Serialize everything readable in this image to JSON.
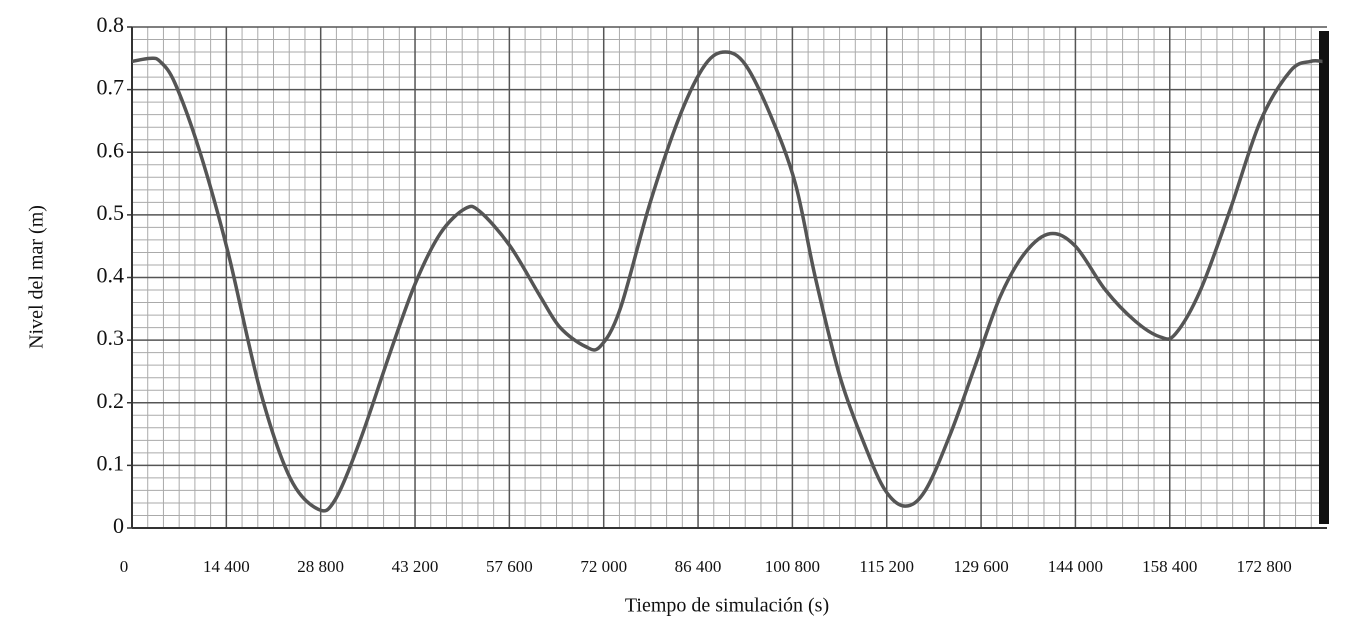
{
  "chart_data": {
    "type": "line",
    "x_label": "Tiempo de simulación (s)",
    "y_label": "Nivel del mar (m)",
    "xlim": [
      0,
      182400
    ],
    "ylim": [
      0,
      0.8
    ],
    "xticks": [
      0,
      {
        "value": 14400,
        "label": "14 400"
      },
      {
        "value": 28800,
        "label": "28 800"
      },
      {
        "value": 43200,
        "label": "43 200"
      },
      {
        "value": 57600,
        "label": "57 600"
      },
      {
        "value": 72000,
        "label": "72 000"
      },
      {
        "value": 86400,
        "label": "86 400"
      },
      {
        "value": 100800,
        "label": "100 800"
      },
      {
        "value": 115200,
        "label": "115 200"
      },
      {
        "value": 129600,
        "label": "129 600"
      },
      {
        "value": 144000,
        "label": "144 000"
      },
      {
        "value": 158400,
        "label": "158 400"
      },
      {
        "value": 172800,
        "label": "172 800"
      }
    ],
    "yticks": [
      0,
      0.1,
      0.2,
      0.3,
      0.4,
      0.5,
      0.6,
      0.7,
      0.8
    ],
    "grid": true,
    "minor_grid": true,
    "series": [
      {
        "color": "#555555",
        "x": [
          0,
          2750,
          4280,
          6570,
          10380,
          14660,
          19550,
          24130,
          28400,
          31000,
          34820,
          39400,
          43220,
          47040,
          50850,
          53140,
          57720,
          62300,
          65360,
          69180,
          71470,
          74520,
          79100,
          83690,
          87500,
          90560,
          93610,
          97430,
          101250,
          104300,
          108110,
          111930,
          114980,
          118040,
          121090,
          124910,
          128730,
          132540,
          136360,
          140180,
          144000,
          148580,
          153160,
          156980,
          159270,
          163090,
          167670,
          172250,
          176830,
          179880,
          181710
        ],
        "values": [
          0.745,
          0.75,
          0.745,
          0.71,
          0.6,
          0.44,
          0.22,
          0.08,
          0.03,
          0.045,
          0.14,
          0.28,
          0.39,
          0.47,
          0.51,
          0.505,
          0.45,
          0.37,
          0.32,
          0.29,
          0.29,
          0.35,
          0.52,
          0.66,
          0.74,
          0.76,
          0.74,
          0.66,
          0.55,
          0.4,
          0.24,
          0.13,
          0.06,
          0.035,
          0.06,
          0.15,
          0.26,
          0.37,
          0.44,
          0.47,
          0.45,
          0.38,
          0.33,
          0.305,
          0.31,
          0.38,
          0.51,
          0.65,
          0.73,
          0.745,
          0.745
        ]
      }
    ]
  }
}
